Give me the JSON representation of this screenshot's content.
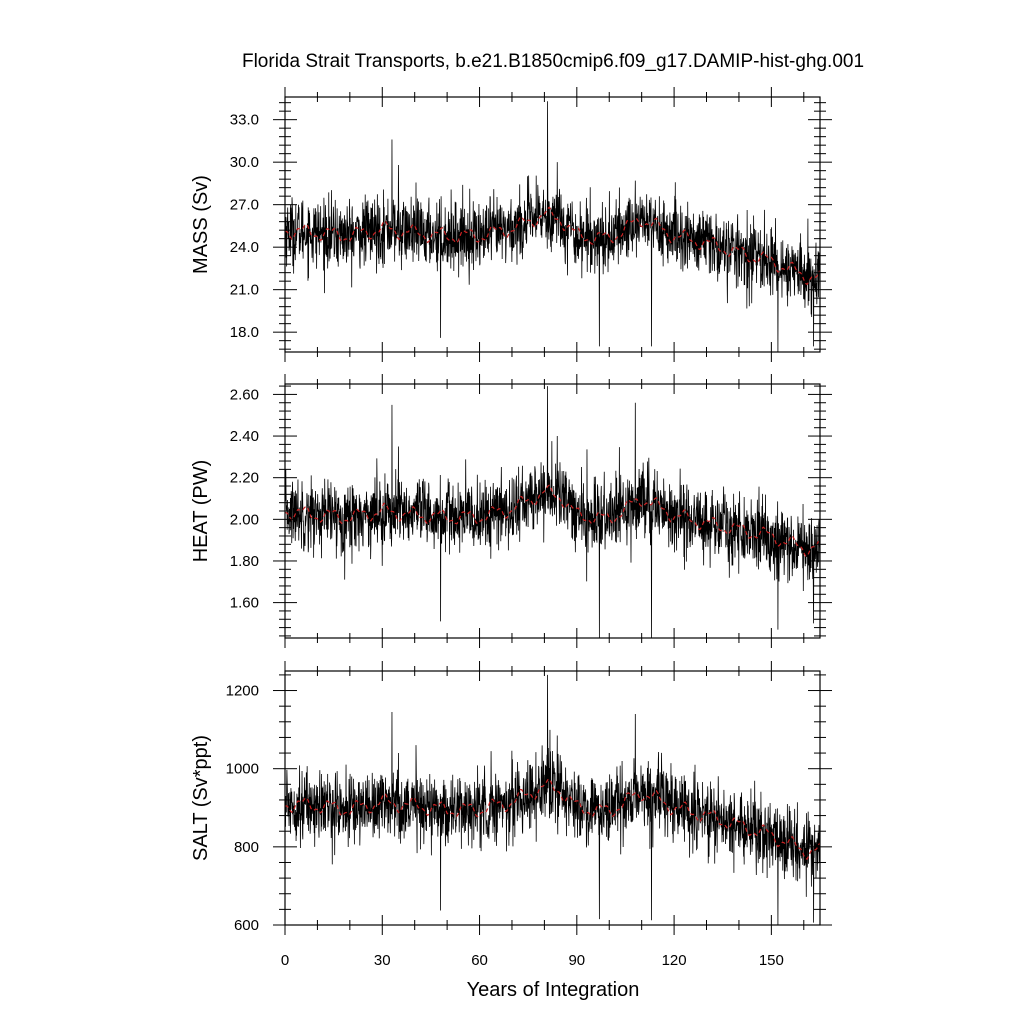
{
  "chart_data": {
    "type": "line",
    "title": "Florida Strait Transports, b.e21.B1850cmip6.f09_g17.DAMIP-hist-ghg.001",
    "xlabel": "Years of Integration",
    "xlim": [
      0,
      165
    ],
    "xticks": [
      0,
      30,
      60,
      90,
      120,
      150
    ],
    "xtick_labels": [
      "0",
      "30",
      "60",
      "90",
      "120",
      "150"
    ],
    "colors": {
      "raw": "#000000",
      "smooth": "#cc2222",
      "axes": "#000000"
    },
    "panels": [
      {
        "ylabel": "MASS (Sv)",
        "ylim": [
          16.6,
          34.6
        ],
        "yticks": [
          18,
          21,
          24,
          27,
          30,
          33
        ],
        "ytick_labels": [
          "18.0",
          "21.0",
          "24.0",
          "27.0",
          "30.0",
          "33.0"
        ],
        "series": [
          {
            "kind": "raw",
            "x_start": 0,
            "x_step": 0.0833,
            "baseline": [
              [
                0,
                25.2
              ],
              [
                10,
                25.0
              ],
              [
                20,
                24.8
              ],
              [
                30,
                25.3
              ],
              [
                40,
                25.0
              ],
              [
                50,
                24.8
              ],
              [
                60,
                24.8
              ],
              [
                70,
                25.3
              ],
              [
                80,
                26.3
              ],
              [
                85,
                26.0
              ],
              [
                90,
                24.8
              ],
              [
                100,
                24.6
              ],
              [
                110,
                26.0
              ],
              [
                120,
                24.8
              ],
              [
                130,
                24.3
              ],
              [
                140,
                23.6
              ],
              [
                150,
                23.0
              ],
              [
                160,
                22.0
              ],
              [
                165,
                21.8
              ]
            ],
            "noise_sd": 1.2,
            "spikes": [
              [
                33,
                31.6
              ],
              [
                35,
                29.8
              ],
              [
                81,
                34.3
              ],
              [
                84,
                30.0
              ],
              [
                108,
                28.7
              ],
              [
                48,
                17.6
              ],
              [
                97,
                17.0
              ],
              [
                113,
                17.0
              ],
              [
                152,
                16.6
              ],
              [
                163,
                17.0
              ]
            ]
          },
          {
            "kind": "smooth",
            "x_start": 0,
            "x_step": 0.5,
            "baseline": [
              [
                0,
                25.2
              ],
              [
                10,
                25.0
              ],
              [
                20,
                24.8
              ],
              [
                30,
                25.3
              ],
              [
                40,
                25.0
              ],
              [
                50,
                24.8
              ],
              [
                60,
                24.8
              ],
              [
                70,
                25.3
              ],
              [
                80,
                26.3
              ],
              [
                85,
                26.0
              ],
              [
                90,
                24.8
              ],
              [
                100,
                24.6
              ],
              [
                110,
                26.0
              ],
              [
                120,
                24.8
              ],
              [
                130,
                24.3
              ],
              [
                140,
                23.6
              ],
              [
                150,
                23.0
              ],
              [
                160,
                22.0
              ],
              [
                165,
                21.8
              ]
            ],
            "wiggle": 0.6
          }
        ]
      },
      {
        "ylabel": "HEAT (PW)",
        "ylim": [
          1.43,
          2.65
        ],
        "yticks": [
          1.6,
          1.8,
          2.0,
          2.2,
          2.4,
          2.6
        ],
        "ytick_labels": [
          "1.60",
          "1.80",
          "2.00",
          "2.20",
          "2.40",
          "2.60"
        ],
        "series": [
          {
            "kind": "raw",
            "x_start": 0,
            "x_step": 0.0833,
            "baseline": [
              [
                0,
                2.04
              ],
              [
                10,
                2.02
              ],
              [
                20,
                2.01
              ],
              [
                30,
                2.04
              ],
              [
                40,
                2.02
              ],
              [
                50,
                2.01
              ],
              [
                60,
                2.01
              ],
              [
                70,
                2.05
              ],
              [
                80,
                2.13
              ],
              [
                85,
                2.11
              ],
              [
                90,
                2.02
              ],
              [
                100,
                2.0
              ],
              [
                110,
                2.1
              ],
              [
                120,
                2.02
              ],
              [
                130,
                1.98
              ],
              [
                140,
                1.95
              ],
              [
                150,
                1.92
              ],
              [
                160,
                1.86
              ],
              [
                165,
                1.87
              ]
            ],
            "noise_sd": 0.085,
            "spikes": [
              [
                33,
                2.55
              ],
              [
                35,
                2.35
              ],
              [
                81,
                2.64
              ],
              [
                84,
                2.4
              ],
              [
                108,
                2.56
              ],
              [
                48,
                1.51
              ],
              [
                97,
                1.43
              ],
              [
                113,
                1.43
              ],
              [
                152,
                1.47
              ],
              [
                163,
                1.5
              ]
            ]
          },
          {
            "kind": "smooth",
            "x_start": 0,
            "x_step": 0.5,
            "baseline": [
              [
                0,
                2.04
              ],
              [
                10,
                2.02
              ],
              [
                20,
                2.01
              ],
              [
                30,
                2.04
              ],
              [
                40,
                2.02
              ],
              [
                50,
                2.01
              ],
              [
                60,
                2.01
              ],
              [
                70,
                2.05
              ],
              [
                80,
                2.13
              ],
              [
                85,
                2.11
              ],
              [
                90,
                2.02
              ],
              [
                100,
                2.0
              ],
              [
                110,
                2.1
              ],
              [
                120,
                2.02
              ],
              [
                130,
                1.98
              ],
              [
                140,
                1.95
              ],
              [
                150,
                1.92
              ],
              [
                160,
                1.86
              ],
              [
                165,
                1.87
              ]
            ],
            "wiggle": 0.04
          }
        ]
      },
      {
        "ylabel": "SALT (Sv*ppt)",
        "ylim": [
          600,
          1250
        ],
        "yticks": [
          600,
          800,
          1000,
          1200
        ],
        "ytick_labels": [
          "600",
          "800",
          "1000",
          "1200"
        ],
        "series": [
          {
            "kind": "raw",
            "x_start": 0,
            "x_step": 0.0833,
            "baseline": [
              [
                0,
                910
              ],
              [
                10,
                905
              ],
              [
                20,
                895
              ],
              [
                30,
                915
              ],
              [
                40,
                905
              ],
              [
                50,
                895
              ],
              [
                60,
                895
              ],
              [
                70,
                915
              ],
              [
                80,
                955
              ],
              [
                85,
                945
              ],
              [
                90,
                900
              ],
              [
                100,
                890
              ],
              [
                110,
                940
              ],
              [
                120,
                900
              ],
              [
                130,
                880
              ],
              [
                140,
                855
              ],
              [
                150,
                830
              ],
              [
                160,
                790
              ],
              [
                165,
                790
              ]
            ],
            "noise_sd": 45,
            "spikes": [
              [
                33,
                1145
              ],
              [
                35,
                1040
              ],
              [
                81,
                1240
              ],
              [
                84,
                1085
              ],
              [
                108,
                1140
              ],
              [
                48,
                637
              ],
              [
                97,
                615
              ],
              [
                113,
                612
              ],
              [
                152,
                600
              ],
              [
                163,
                606
              ]
            ]
          },
          {
            "kind": "smooth",
            "x_start": 0,
            "x_step": 0.5,
            "baseline": [
              [
                0,
                910
              ],
              [
                10,
                905
              ],
              [
                20,
                895
              ],
              [
                30,
                915
              ],
              [
                40,
                905
              ],
              [
                50,
                895
              ],
              [
                60,
                895
              ],
              [
                70,
                915
              ],
              [
                80,
                955
              ],
              [
                85,
                945
              ],
              [
                90,
                900
              ],
              [
                100,
                890
              ],
              [
                110,
                940
              ],
              [
                120,
                900
              ],
              [
                130,
                880
              ],
              [
                140,
                855
              ],
              [
                150,
                830
              ],
              [
                160,
                790
              ],
              [
                165,
                790
              ]
            ],
            "wiggle": 22
          }
        ]
      }
    ]
  }
}
